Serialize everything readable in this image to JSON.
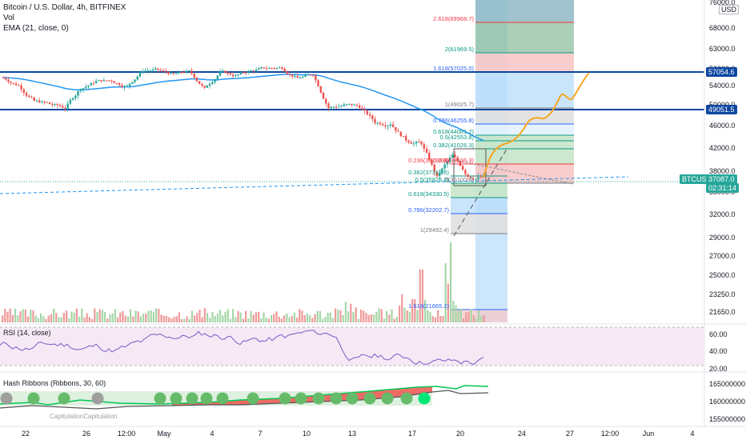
{
  "header": {
    "symbol_line": "Bitcoin / U.S. Dollar, 4h, BITFINEX",
    "vol_label": "Vol",
    "ema_label": "EMA (21, close, 0)"
  },
  "currency_badge": "USD",
  "price_axis": {
    "ticks": [
      "76000.0",
      "68000.0",
      "63000.0",
      "58000.0",
      "54000.0",
      "50000.0",
      "46000.0",
      "42000.0",
      "38000.0",
      "35000.0",
      "32000.0",
      "29000.0",
      "27000.0",
      "25000.0",
      "23250.0",
      "21650.0"
    ],
    "markers": [
      {
        "label": "57054.6",
        "kind": "resistance"
      },
      {
        "label": "49051.5",
        "kind": "resistance"
      },
      {
        "label": "37087.0",
        "kind": "last"
      },
      {
        "label": "02:31:14",
        "kind": "countdown"
      }
    ],
    "symbol_tag": "BTCUSD"
  },
  "time_axis": {
    "ticks": [
      "22",
      "26",
      "12:00",
      "May",
      "4",
      "7",
      "10",
      "13",
      "17",
      "20",
      "24",
      "27",
      "12:00",
      "Jun",
      "4"
    ]
  },
  "fib_upper": [
    {
      "label": "2.618(69968.7)",
      "color": "#f23645"
    },
    {
      "label": "2(61969.5)",
      "color": "#089981"
    },
    {
      "label": "1.618(57025.0)",
      "color": "#2962ff"
    },
    {
      "label": "1(49025.7)",
      "color": "#787b86"
    },
    {
      "label": "0.786(46255.8)",
      "color": "#2962ff"
    },
    {
      "label": "0.618(44081.2)",
      "color": "#089981"
    },
    {
      "label": "0.5(42553.8)",
      "color": "#089981"
    },
    {
      "label": "0.382(41026.3)",
      "color": "#089981"
    },
    {
      "label": "0.236(39136.3)",
      "color": "#f23645"
    },
    {
      "label": "0(36100.8)",
      "color": "#787b86"
    }
  ],
  "fib_lower": [
    {
      "label": "0.236(39199.8)",
      "color": "#f23645"
    },
    {
      "label": "0.382(37319.6)",
      "color": "#089981"
    },
    {
      "label": "0.5(35825.0)",
      "color": "#089981"
    },
    {
      "label": "0.618(34330.5)",
      "color": "#089981"
    },
    {
      "label": "0.786(32202.7)",
      "color": "#2962ff"
    },
    {
      "label": "1(29492.4)",
      "color": "#787b86"
    },
    {
      "label": "1.618(21665.2)",
      "color": "#2962ff"
    }
  ],
  "rsi": {
    "title": "RSI (14, close)",
    "ticks": [
      "60.00",
      "40.00",
      "20.00"
    ]
  },
  "hash": {
    "title": "Hash Ribbons (Ribbons, 30, 60)",
    "ticks": [
      "165000000.0",
      "160000000.0",
      "155000000.0"
    ],
    "annotation": "CapitulationCapitulation"
  },
  "colors": {
    "up": "#26a69a",
    "down": "#ef5350",
    "ema": "#2196f3",
    "horizontal_line": "#0d47a1",
    "projection": "#f5a623",
    "rsi_line": "#7e57c2",
    "rsi_band": "#f3e5f5",
    "target_zone": "#bbdefb",
    "hash_fast": "#00c853",
    "hash_slow": "#555555",
    "dot_green": "#66bb6a",
    "dot_gray": "#9e9e9e"
  },
  "chart_data": {
    "type": "candlestick",
    "interval": "4h",
    "exchange": "BITFINEX",
    "overlays": [
      "EMA 21",
      "Fibonacci extension",
      "Fibonacci retracement",
      "horizontal lines 57054.6 and 49051.5"
    ],
    "last_price": 37087.0,
    "horizontal_levels": [
      57054.6,
      49051.5
    ],
    "close_path": [
      {
        "t": "Apr 21",
        "v": 55900
      },
      {
        "t": "Apr 22",
        "v": 54000
      },
      {
        "t": "Apr 23",
        "v": 50800
      },
      {
        "t": "Apr 24",
        "v": 50200
      },
      {
        "t": "Apr 25",
        "v": 49400
      },
      {
        "t": "Apr 26",
        "v": 53500
      },
      {
        "t": "Apr 27",
        "v": 55000
      },
      {
        "t": "Apr 28",
        "v": 55200
      },
      {
        "t": "Apr 29",
        "v": 53800
      },
      {
        "t": "Apr 30",
        "v": 57700
      },
      {
        "t": "May 1",
        "v": 57800
      },
      {
        "t": "May 2",
        "v": 56600
      },
      {
        "t": "May 3",
        "v": 57400
      },
      {
        "t": "May 4",
        "v": 53300
      },
      {
        "t": "May 5",
        "v": 57200
      },
      {
        "t": "May 6",
        "v": 56300
      },
      {
        "t": "May 7",
        "v": 57500
      },
      {
        "t": "May 8",
        "v": 58200
      },
      {
        "t": "May 9",
        "v": 58300
      },
      {
        "t": "May 10",
        "v": 55800
      },
      {
        "t": "May 11",
        "v": 56700
      },
      {
        "t": "May 12",
        "v": 49400
      },
      {
        "t": "May 13",
        "v": 49900
      },
      {
        "t": "May 14",
        "v": 49700
      },
      {
        "t": "May 15",
        "v": 46700
      },
      {
        "t": "May 16",
        "v": 46400
      },
      {
        "t": "May 17",
        "v": 43500
      },
      {
        "t": "May 18",
        "v": 42900
      },
      {
        "t": "May 19",
        "v": 37000
      },
      {
        "t": "May 20",
        "v": 40700
      },
      {
        "t": "May 21",
        "v": 37300
      },
      {
        "t": "May 22",
        "v": 37087
      }
    ],
    "rsi_range": [
      20,
      80
    ],
    "hash_ribbons_range": [
      155000000,
      165000000
    ]
  }
}
